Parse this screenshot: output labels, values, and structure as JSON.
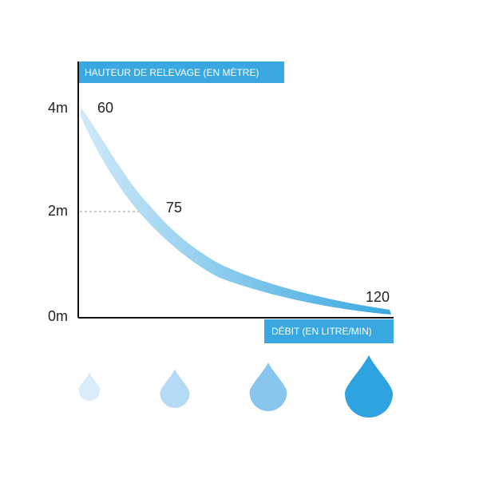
{
  "chart_data": {
    "type": "line",
    "ylabel": "HAUTEUR DE RELEVAGE (EN MÈTRE)",
    "xlabel": "DÉBIT (EN LITRE/MIN)",
    "y_ticks": [
      {
        "value": 4,
        "label": "4m"
      },
      {
        "value": 2,
        "label": "2m"
      },
      {
        "value": 0,
        "label": "0m"
      }
    ],
    "ylim": [
      0,
      4
    ],
    "series": [
      {
        "points": [
          {
            "y": 4,
            "label": "60"
          },
          {
            "y": 2,
            "label": "75"
          },
          {
            "y": 0,
            "label": "120"
          }
        ]
      }
    ],
    "guide_lines": [
      2
    ],
    "gradient_colors": [
      "#cfe9f8",
      "#3aa8e0"
    ],
    "drop_icons": [
      {
        "name": "drop-icon",
        "color": "#d8ecf9"
      },
      {
        "name": "drop-icon",
        "color": "#b4daf4"
      },
      {
        "name": "drop-icon",
        "color": "#88c6ee"
      },
      {
        "name": "drop-icon",
        "color": "#2ea3df"
      }
    ]
  }
}
